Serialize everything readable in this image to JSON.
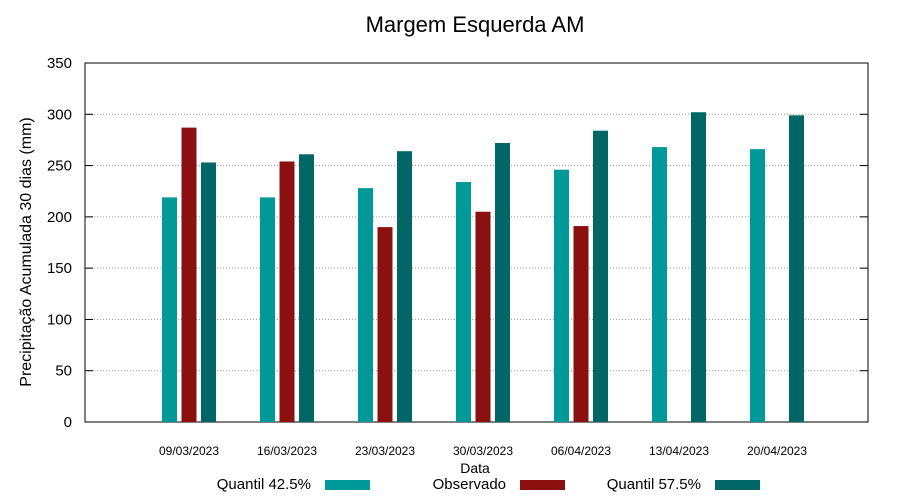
{
  "chart_data": {
    "type": "bar",
    "title": "Margem Esquerda AM",
    "xlabel": "Data",
    "ylabel": "Precipitação Acumulada 30 dias (mm)",
    "ylim": [
      0,
      350
    ],
    "yticks": [
      0,
      50,
      100,
      150,
      200,
      250,
      300,
      350
    ],
    "grid": true,
    "legend_position": "bottom",
    "categories": [
      "09/03/2023",
      "16/03/2023",
      "23/03/2023",
      "30/03/2023",
      "06/04/2023",
      "13/04/2023",
      "20/04/2023"
    ],
    "series": [
      {
        "name": "Quantil 42.5%",
        "color": "#009999",
        "values": [
          219,
          219,
          228,
          234,
          246,
          268,
          266
        ]
      },
      {
        "name": "Observado",
        "color": "#8b1010",
        "values": [
          287,
          254,
          190,
          205,
          191,
          null,
          null
        ]
      },
      {
        "name": "Quantil 57.5%",
        "color": "#006666",
        "values": [
          253,
          261,
          264,
          272,
          284,
          302,
          299
        ]
      }
    ]
  }
}
